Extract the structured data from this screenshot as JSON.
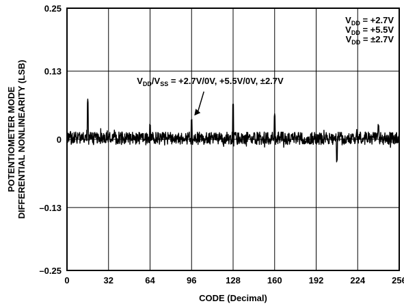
{
  "chart_data": {
    "type": "line",
    "xlabel": "CODE (Decimal)",
    "ylabel_line1": "POTENTIOMETER MODE",
    "ylabel_line2": "DIFFERENTIAL NONLINEARITY (LSB)",
    "xlim": [
      0,
      256
    ],
    "ylim": [
      -0.25,
      0.25
    ],
    "x_ticks": [
      0,
      32,
      64,
      96,
      128,
      160,
      192,
      224,
      256
    ],
    "x_tick_labels": [
      "0",
      "32",
      "64",
      "96",
      "128",
      "160",
      "192",
      "224",
      "256"
    ],
    "y_ticks": [
      0.25,
      0.13,
      0,
      -0.13,
      -0.25
    ],
    "y_tick_labels": [
      "0.25",
      "0.13",
      "0",
      "–0.13",
      "–0.25"
    ],
    "grid": true,
    "legend": {
      "placement": "top-right",
      "entries": [
        {
          "main": "V",
          "sub": "DD",
          "rest": " = +2.7V"
        },
        {
          "main": "V",
          "sub": "DD",
          "rest": " = +5.5V"
        },
        {
          "main": "V",
          "sub": "DD",
          "rest": " = ±2.7V"
        }
      ]
    },
    "annotation": {
      "v1": "V",
      "sub1": "DD",
      "slash": "/V",
      "sub2": "SS",
      "rest": " =  +2.7V/0V, +5.5V/0V, ±2.7V",
      "arrow_target": {
        "x": 96,
        "y": 0.04
      }
    },
    "series": [
      {
        "color": "#000000",
        "baseline": 0.002,
        "noise_amplitude": 0.012,
        "spikes": [
          {
            "x": 16,
            "y": 0.08
          },
          {
            "x": 64,
            "y": 0.03
          },
          {
            "x": 96,
            "y": 0.04
          },
          {
            "x": 128,
            "y": 0.07
          },
          {
            "x": 160,
            "y": 0.05
          },
          {
            "x": 208,
            "y": -0.045
          },
          {
            "x": 240,
            "y": 0.03
          }
        ]
      }
    ]
  }
}
